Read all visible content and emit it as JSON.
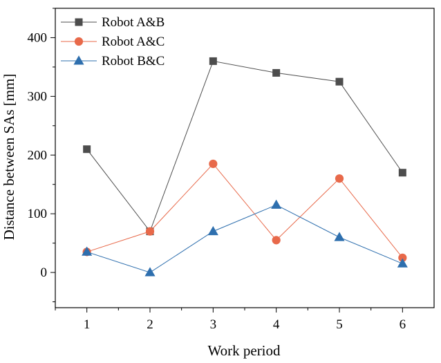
{
  "chart_data": {
    "type": "line",
    "title": "",
    "xlabel": "Work period",
    "ylabel": "Distance between SAs [mm]",
    "x": [
      1,
      2,
      3,
      4,
      5,
      6
    ],
    "xlim": [
      0.5,
      6.5
    ],
    "ylim": [
      -60,
      450
    ],
    "xticks": [
      1,
      2,
      3,
      4,
      5,
      6
    ],
    "yticks": [
      0,
      100,
      200,
      300,
      400
    ],
    "grid": false,
    "legend_position": "top-left",
    "series": [
      {
        "name": "Robot A&B",
        "marker": "square",
        "color": "#4d4d4d",
        "values": [
          210,
          70,
          360,
          340,
          325,
          170
        ]
      },
      {
        "name": "Robot A&C",
        "marker": "circle",
        "color": "#e8694a",
        "values": [
          35,
          70,
          185,
          55,
          160,
          25
        ]
      },
      {
        "name": "Robot B&C",
        "marker": "triangle",
        "color": "#2e6fae",
        "values": [
          35,
          0,
          70,
          115,
          60,
          15
        ]
      }
    ]
  }
}
